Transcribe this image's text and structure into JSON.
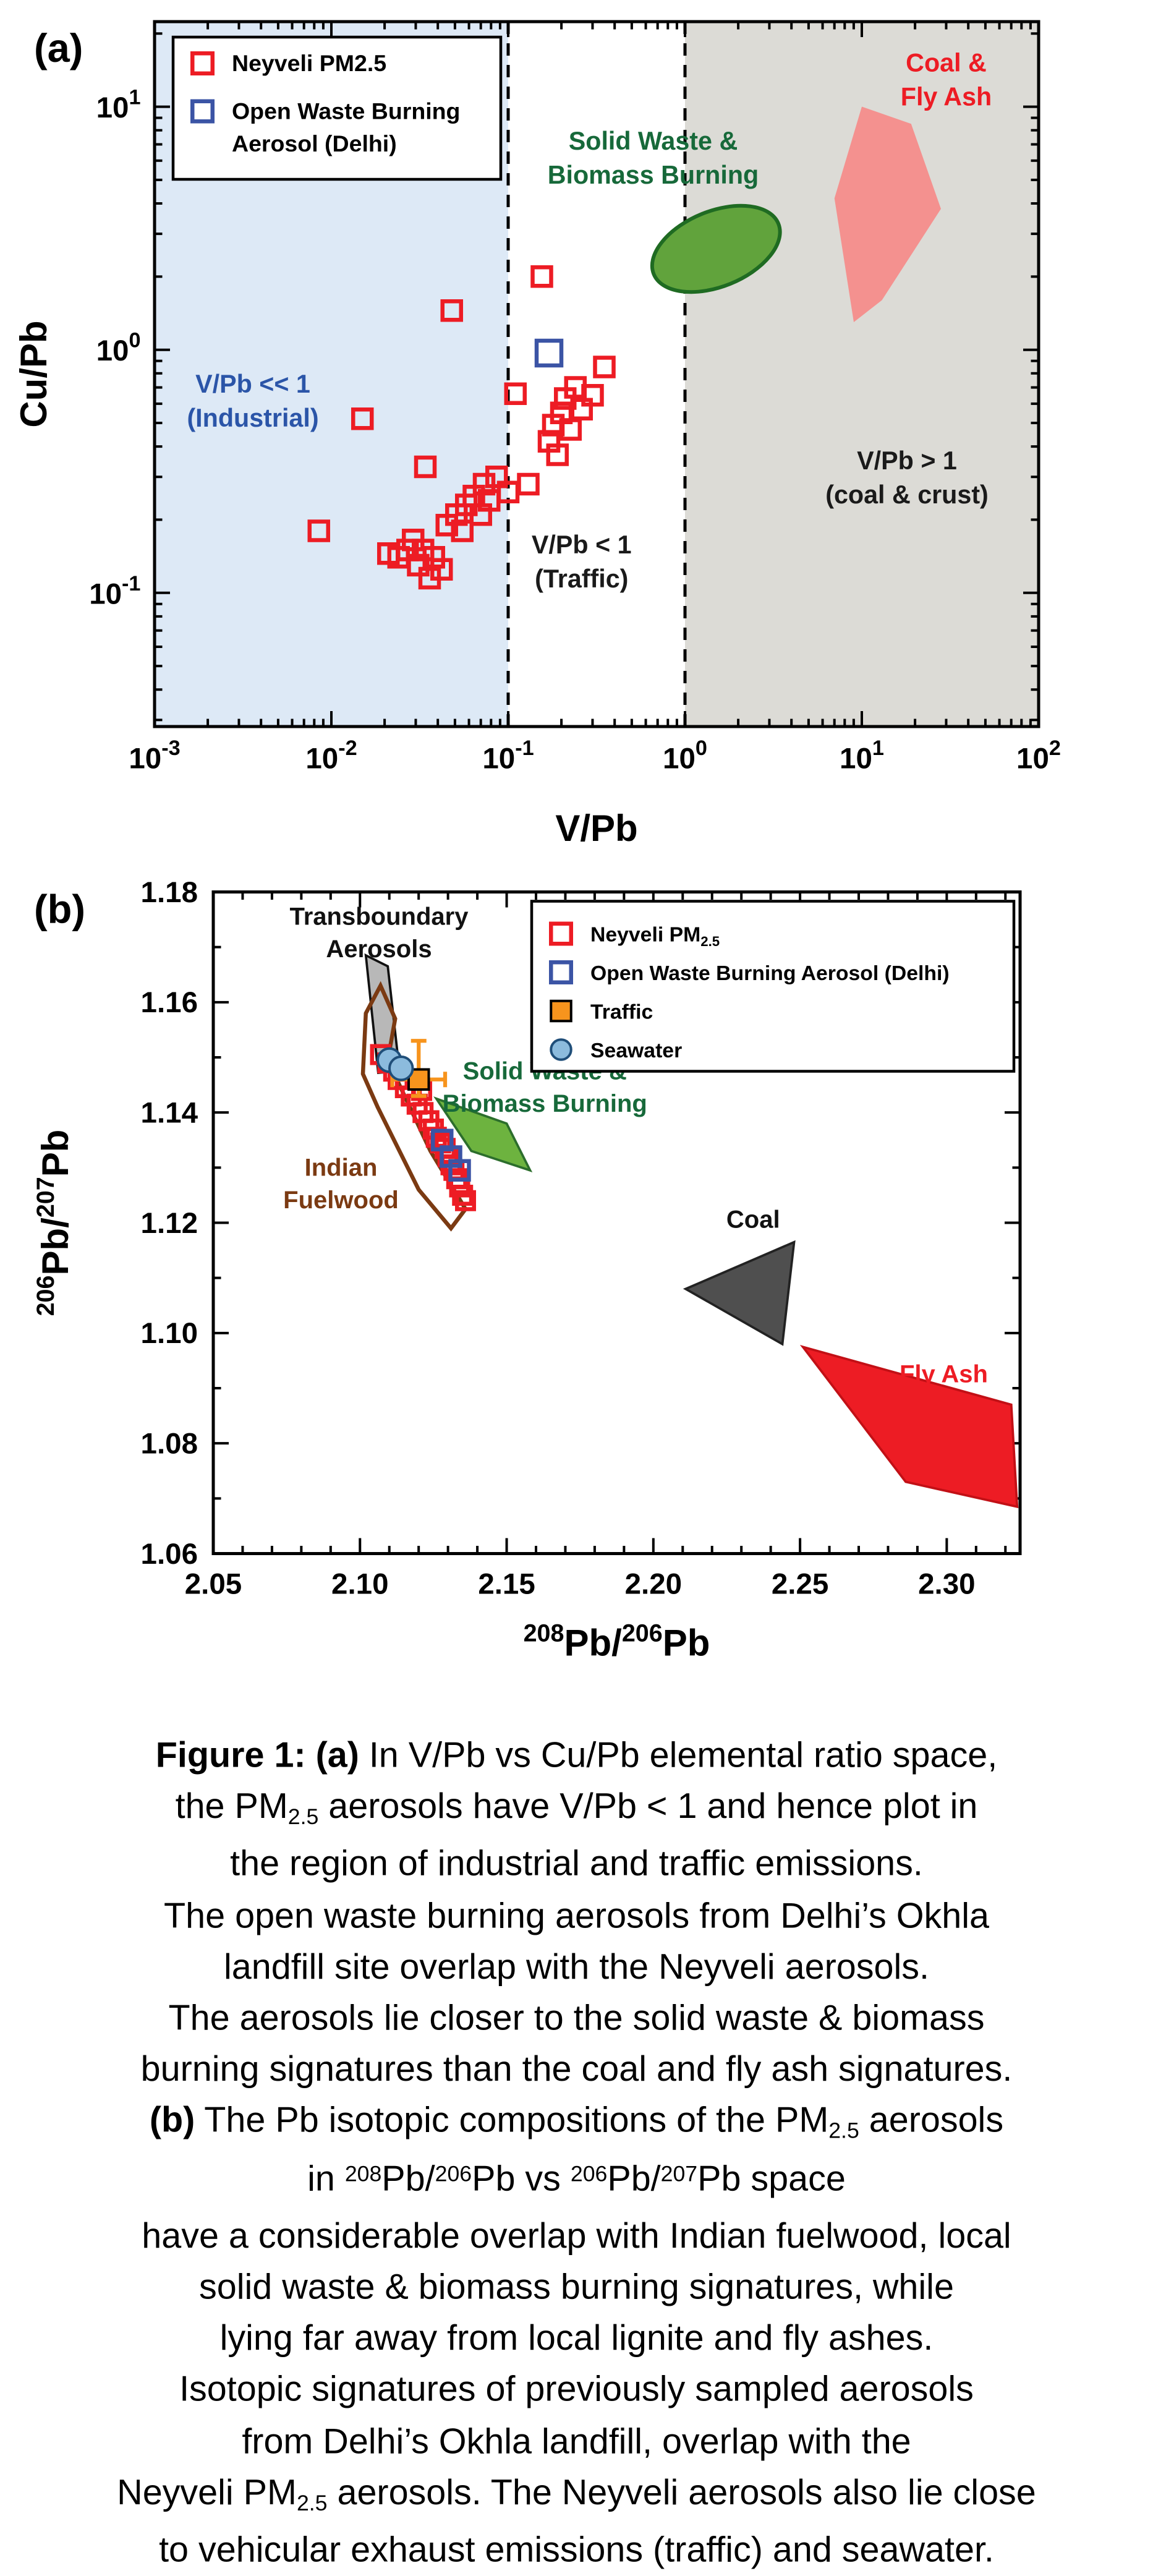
{
  "chart_data": [
    {
      "id": "panel-a",
      "type": "scatter",
      "panel_label": "(a)",
      "xlabel": "V/Pb",
      "ylabel": "Cu/Pb",
      "x_scale": "log",
      "y_scale": "log",
      "xlim_log": [
        -3,
        2
      ],
      "ylim_log": [
        -1.55,
        1.35
      ],
      "x_major_ticks": [
        0.001,
        0.01,
        0.1,
        1,
        10,
        100
      ],
      "y_major_ticks": [
        0.1,
        1,
        10
      ],
      "background_regions": [
        {
          "name": "industrial-region",
          "x_from": 0.001,
          "x_to": 0.1,
          "fill": "#dde9f6"
        },
        {
          "name": "coal-crust-region",
          "x_from": 1,
          "x_to": 100,
          "fill": "#dcdbd6"
        }
      ],
      "dashed_boundaries_x": [
        0.1,
        1
      ],
      "series": [
        {
          "name": "Neyveli PM2.5",
          "marker": "open-square",
          "marker_size": 12,
          "color": "#ed1c24",
          "points": [
            [
              0.0085,
              0.18
            ],
            [
              0.015,
              0.52
            ],
            [
              0.021,
              0.145
            ],
            [
              0.024,
              0.14
            ],
            [
              0.027,
              0.15
            ],
            [
              0.029,
              0.165
            ],
            [
              0.031,
              0.13
            ],
            [
              0.033,
              0.15
            ],
            [
              0.034,
              0.33
            ],
            [
              0.036,
              0.115
            ],
            [
              0.038,
              0.14
            ],
            [
              0.042,
              0.125
            ],
            [
              0.045,
              0.19
            ],
            [
              0.048,
              1.45
            ],
            [
              0.051,
              0.21
            ],
            [
              0.055,
              0.18
            ],
            [
              0.058,
              0.23
            ],
            [
              0.064,
              0.25
            ],
            [
              0.07,
              0.21
            ],
            [
              0.073,
              0.28
            ],
            [
              0.078,
              0.24
            ],
            [
              0.086,
              0.3
            ],
            [
              0.1,
              0.26
            ],
            [
              0.11,
              0.66
            ],
            [
              0.13,
              0.28
            ],
            [
              0.155,
              2.0
            ],
            [
              0.17,
              0.42
            ],
            [
              0.18,
              0.49
            ],
            [
              0.19,
              0.37
            ],
            [
              0.2,
              0.55
            ],
            [
              0.21,
              0.63
            ],
            [
              0.225,
              0.47
            ],
            [
              0.24,
              0.7
            ],
            [
              0.26,
              0.57
            ],
            [
              0.3,
              0.65
            ],
            [
              0.35,
              0.85
            ]
          ]
        },
        {
          "name": "Open Waste Burning Aerosol (Delhi)",
          "marker": "open-square",
          "marker_size": 16,
          "color": "#3b54a5",
          "points": [
            [
              0.17,
              0.97
            ]
          ]
        }
      ],
      "source_shapes": [
        {
          "name": "solid-waste-biomass-burning-field",
          "kind": "ellipse",
          "center": [
            1.5,
            2.6
          ],
          "rx_decades": 0.38,
          "ry_decades": 0.155,
          "rotation_deg": -22,
          "fill": "#61a33c",
          "stroke": "#1f6b22"
        },
        {
          "name": "coal-fly-ash-field",
          "kind": "polygon",
          "fill": "#f4918f",
          "points": [
            [
              9,
              1.3
            ],
            [
              7,
              4.2
            ],
            [
              10,
              10
            ],
            [
              19,
              8.5
            ],
            [
              28,
              3.8
            ],
            [
              13,
              1.6
            ]
          ]
        }
      ],
      "annotations": [
        {
          "name": "industrial-region-label",
          "lines": [
            "V/Pb << 1",
            "(Industrial)"
          ],
          "x": 0.0036,
          "y": 0.62,
          "color": "#2b55a8"
        },
        {
          "name": "traffic-region-label",
          "lines": [
            "V/Pb < 1",
            "(Traffic)"
          ],
          "x": 0.26,
          "y": 0.135,
          "color": "#1a1a1a"
        },
        {
          "name": "coal-crust-region-label",
          "lines": [
            "V/Pb > 1",
            "(coal & crust)"
          ],
          "x": 18,
          "y": 0.3,
          "color": "#1a1a1a"
        },
        {
          "name": "solid-waste-label",
          "lines": [
            "Solid Waste &",
            "Biomass Burning"
          ],
          "x": 0.66,
          "y": 6.2,
          "color": "#17693a"
        },
        {
          "name": "coal-fly-ash-label",
          "lines": [
            "Coal &",
            "Fly Ash"
          ],
          "x": 30,
          "y": 13,
          "color": "#ed1c24"
        }
      ],
      "legend": {
        "items": [
          {
            "marker": "open-square",
            "color": "#ed1c24",
            "label_lines": [
              [
                {
                  "t": "Neyveli PM2.5"
                }
              ]
            ]
          },
          {
            "marker": "open-square",
            "color": "#3b54a5",
            "label_lines": [
              [
                {
                  "t": "Open Waste Burning"
                }
              ],
              [
                {
                  "t": "Aerosol (Delhi)"
                }
              ]
            ]
          }
        ]
      }
    },
    {
      "id": "panel-b",
      "type": "scatter",
      "panel_label": "(b)",
      "xlabel_text": "208Pb/206Pb",
      "ylabel_text": "206Pb/207Pb",
      "xlabel_segments": [
        {
          "sup": "208"
        },
        {
          "t": "Pb/"
        },
        {
          "sup": "206"
        },
        {
          "t": "Pb"
        }
      ],
      "ylabel_segments": [
        {
          "sup": "206"
        },
        {
          "t": "Pb/"
        },
        {
          "sup": "207"
        },
        {
          "t": "Pb"
        }
      ],
      "xlim": [
        2.05,
        2.325
      ],
      "ylim": [
        1.06,
        1.18
      ],
      "x_major_ticks": [
        2.05,
        2.1,
        2.15,
        2.2,
        2.25,
        2.3
      ],
      "x_minor_step": 0.01,
      "y_major_ticks": [
        1.06,
        1.08,
        1.1,
        1.12,
        1.14,
        1.16,
        1.18
      ],
      "y_minor_step": 0.01,
      "series": [
        {
          "name": "Neyveli PM2.5",
          "marker": "open-square",
          "marker_size": 11,
          "color": "#ed1c24",
          "points": [
            [
              2.107,
              1.1505
            ],
            [
              2.1095,
              1.149
            ],
            [
              2.1115,
              1.1475
            ],
            [
              2.113,
              1.146
            ],
            [
              2.1155,
              1.1445
            ],
            [
              2.1175,
              1.143
            ],
            [
              2.1195,
              1.1415
            ],
            [
              2.121,
              1.144
            ],
            [
              2.1215,
              1.14
            ],
            [
              2.1235,
              1.1385
            ],
            [
              2.125,
              1.137
            ],
            [
              2.126,
              1.1355
            ],
            [
              2.1275,
              1.1345
            ],
            [
              2.129,
              1.1335
            ],
            [
              2.13,
              1.132
            ],
            [
              2.131,
              1.1305
            ],
            [
              2.132,
              1.1295
            ],
            [
              2.133,
              1.128
            ],
            [
              2.134,
              1.1265
            ],
            [
              2.135,
              1.125
            ],
            [
              2.136,
              1.124
            ]
          ]
        },
        {
          "name": "Open Waste Burning Aerosol (Delhi)",
          "marker": "open-square",
          "marker_size": 12,
          "color": "#3b54a5",
          "points": [
            [
              2.128,
              1.135
            ],
            [
              2.131,
              1.132
            ],
            [
              2.134,
              1.1295
            ]
          ]
        },
        {
          "name": "Traffic",
          "marker": "filled-square",
          "marker_size": 13,
          "color": "#f7941d",
          "edge": "#000000",
          "points": [
            [
              2.12,
              1.146
            ]
          ],
          "xerr": 0.009,
          "yerr_plus": 0.007,
          "yerr_minus": 0.003
        },
        {
          "name": "Seawater",
          "marker": "filled-circle",
          "marker_size": 15,
          "color": "#8cbbdd",
          "edge": "#1f4e79",
          "points": [
            [
              2.11,
              1.1495
            ],
            [
              2.114,
              1.148
            ]
          ]
        }
      ],
      "source_shapes": [
        {
          "name": "transboundary-aerosols-field",
          "kind": "polygon",
          "fill": "#b8b8b8",
          "stroke": "#111111",
          "points": [
            [
              2.102,
              1.1685
            ],
            [
              2.1095,
              1.1665
            ],
            [
              2.1135,
              1.1475
            ],
            [
              2.1062,
              1.1472
            ]
          ]
        },
        {
          "name": "indian-fuelwood-field",
          "kind": "polygon",
          "fill": "none",
          "stroke": "#7b3a12",
          "points": [
            [
              2.101,
              1.147
            ],
            [
              2.102,
              1.158
            ],
            [
              2.107,
              1.163
            ],
            [
              2.112,
              1.157
            ],
            [
              2.1095,
              1.1495
            ],
            [
              2.124,
              1.133
            ],
            [
              2.136,
              1.1225
            ],
            [
              2.131,
              1.119
            ],
            [
              2.12,
              1.126
            ],
            [
              2.106,
              1.141
            ]
          ]
        },
        {
          "name": "solid-waste-biomass-burning-field",
          "kind": "polygon",
          "fill": "#6db33f",
          "stroke": "#2c6e2c",
          "points": [
            [
              2.126,
              1.1425
            ],
            [
              2.15,
              1.138
            ],
            [
              2.158,
              1.1295
            ],
            [
              2.138,
              1.133
            ]
          ]
        },
        {
          "name": "coal-field",
          "kind": "polygon",
          "fill": "#4f4f4f",
          "stroke": "#222222",
          "points": [
            [
              2.211,
              1.108
            ],
            [
              2.248,
              1.1165
            ],
            [
              2.244,
              1.098
            ]
          ]
        },
        {
          "name": "fly-ash-field",
          "kind": "polygon",
          "fill": "#ed1c24",
          "stroke": "#c21016",
          "points": [
            [
              2.251,
              1.0975
            ],
            [
              2.322,
              1.087
            ],
            [
              2.324,
              1.0685
            ],
            [
              2.286,
              1.073
            ]
          ]
        }
      ],
      "annotations": [
        {
          "name": "transboundary-label",
          "lines": [
            "Transboundary",
            "Aerosols"
          ],
          "x": 2.1065,
          "y": 1.1725,
          "color": "#111111"
        },
        {
          "name": "indian-fuelwood-label",
          "lines": [
            "Indian",
            "Fuelwood"
          ],
          "x": 2.0935,
          "y": 1.127,
          "color": "#7b3a12"
        },
        {
          "name": "solid-waste-label",
          "lines": [
            "Solid Waste &",
            "Biomass Burning"
          ],
          "x": 2.163,
          "y": 1.1445,
          "color": "#17693a"
        },
        {
          "name": "coal-label",
          "lines": [
            "Coal"
          ],
          "x": 2.234,
          "y": 1.1205,
          "color": "#111111"
        },
        {
          "name": "fly-ash-label",
          "lines": [
            "Fly Ash"
          ],
          "x": 2.299,
          "y": 1.0925,
          "color": "#ed1c24"
        }
      ],
      "legend": {
        "items": [
          {
            "marker": "open-square",
            "color": "#ed1c24",
            "label_lines": [
              [
                {
                  "t": "Neyveli PM"
                },
                {
                  "sub": "2.5"
                }
              ]
            ]
          },
          {
            "marker": "open-square",
            "color": "#3b54a5",
            "label_lines": [
              [
                {
                  "t": "Open Waste Burning Aerosol (Delhi)"
                }
              ]
            ]
          },
          {
            "marker": "filled-square",
            "color": "#f7941d",
            "edge": "#000000",
            "label_lines": [
              [
                {
                  "t": "Traffic"
                }
              ]
            ]
          },
          {
            "marker": "filled-circle",
            "color": "#8cbbdd",
            "edge": "#1f4e79",
            "label_lines": [
              [
                {
                  "t": "Seawater"
                }
              ]
            ]
          }
        ]
      }
    }
  ],
  "caption": {
    "lines": [
      [
        {
          "b": "Figure 1: (a)"
        },
        {
          "t": " In V/Pb vs Cu/Pb elemental ratio space,"
        }
      ],
      [
        {
          "t": "the PM"
        },
        {
          "sub": "2.5"
        },
        {
          "t": " aerosols have V/Pb < 1 and hence plot in"
        }
      ],
      [
        {
          "t": "the region of industrial and traffic emissions."
        }
      ],
      [
        {
          "t": "The open waste burning aerosols from Delhi’s Okhla"
        }
      ],
      [
        {
          "t": "landfill site overlap with the Neyveli aerosols."
        }
      ],
      [
        {
          "t": "The aerosols lie closer to the solid waste & biomass"
        }
      ],
      [
        {
          "t": "burning signatures than the coal and fly ash signatures."
        }
      ],
      [
        {
          "b": "(b)"
        },
        {
          "t": " The Pb isotopic compositions of the PM"
        },
        {
          "sub": "2.5"
        },
        {
          "t": " aerosols"
        }
      ],
      [
        {
          "t": "in "
        },
        {
          "sup": "208"
        },
        {
          "t": "Pb/"
        },
        {
          "sup": "206"
        },
        {
          "t": "Pb vs "
        },
        {
          "sup": "206"
        },
        {
          "t": "Pb/"
        },
        {
          "sup": "207"
        },
        {
          "t": "Pb space"
        }
      ],
      [
        {
          "t": "have a considerable overlap with Indian fuelwood, local"
        }
      ],
      [
        {
          "t": "solid waste & biomass burning signatures, while"
        }
      ],
      [
        {
          "t": "lying far away from local lignite and fly ashes."
        }
      ],
      [
        {
          "t": "Isotopic signatures of previously sampled aerosols"
        }
      ],
      [
        {
          "t": "from Delhi’s Okhla landfill, overlap with the"
        }
      ],
      [
        {
          "t": "Neyveli PM"
        },
        {
          "sub": "2.5"
        },
        {
          "t": " aerosols. The Neyveli aerosols also lie close"
        }
      ],
      [
        {
          "t": "to vehicular exhaust emissions (traffic) and seawater."
        }
      ]
    ]
  }
}
